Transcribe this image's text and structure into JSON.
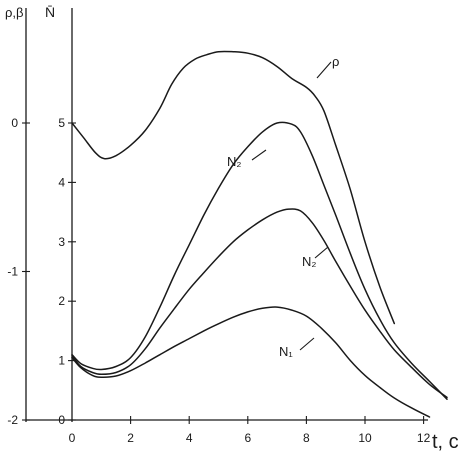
{
  "chart_data": {
    "type": "line",
    "xlabel": "t, c",
    "ylabel_left": "ρ,β",
    "ylabel_right": "N̄",
    "xlim": [
      -1.7,
      12.9
    ],
    "ylim_left": [
      -2.0,
      0.75
    ],
    "ylim_right": [
      0,
      6.5
    ],
    "x_ticks": [
      "0",
      "2",
      "4",
      "6",
      "8",
      "10",
      "12"
    ],
    "left_ticks": [
      "0",
      "-1",
      "-2"
    ],
    "right_ticks": [
      "0",
      "1",
      "2",
      "3",
      "4",
      "5"
    ],
    "grid": false,
    "legend": "none",
    "series": [
      {
        "name": "ρ",
        "axis": "left",
        "x": [
          0,
          0.4,
          0.8,
          1.1,
          1.5,
          2.0,
          2.5,
          3.0,
          3.4,
          3.8,
          4.2,
          4.6,
          5.0,
          5.5,
          6.0,
          6.5,
          7.0,
          7.5,
          8.0,
          8.3,
          8.6,
          9.0,
          9.5,
          10.0,
          10.5,
          11.0
        ],
        "y": [
          0.0,
          -0.1,
          -0.2,
          -0.24,
          -0.22,
          -0.15,
          -0.05,
          0.1,
          0.26,
          0.37,
          0.43,
          0.46,
          0.48,
          0.48,
          0.47,
          0.44,
          0.38,
          0.3,
          0.24,
          0.18,
          0.08,
          -0.15,
          -0.45,
          -0.8,
          -1.1,
          -1.35
        ]
      },
      {
        "name": "N₂",
        "axis": "right",
        "x": [
          0,
          0.3,
          0.7,
          1.0,
          1.5,
          2.0,
          2.5,
          3.0,
          3.5,
          4.0,
          4.5,
          5.0,
          5.5,
          6.0,
          6.5,
          7.0,
          7.5,
          7.8,
          8.2,
          8.6,
          9.0,
          9.5,
          10.0,
          10.5,
          11.0,
          11.6,
          12.2,
          12.8
        ],
        "y": [
          1.1,
          0.95,
          0.87,
          0.85,
          0.9,
          1.05,
          1.4,
          1.9,
          2.45,
          2.95,
          3.45,
          3.9,
          4.3,
          4.6,
          4.85,
          5.0,
          4.98,
          4.85,
          4.45,
          3.95,
          3.45,
          2.8,
          2.2,
          1.7,
          1.3,
          0.95,
          0.65,
          0.35
        ]
      },
      {
        "name": "N₂",
        "axis": "right",
        "x": [
          0,
          0.3,
          0.7,
          1.0,
          1.5,
          2.0,
          2.5,
          3.0,
          3.5,
          4.0,
          4.5,
          5.0,
          5.5,
          6.0,
          6.5,
          7.0,
          7.4,
          7.8,
          8.2,
          8.6,
          9.0,
          9.5,
          10.0,
          10.5,
          11.0,
          11.6,
          12.2,
          12.8
        ],
        "y": [
          1.08,
          0.9,
          0.8,
          0.77,
          0.8,
          0.93,
          1.2,
          1.55,
          1.88,
          2.2,
          2.48,
          2.75,
          3.0,
          3.2,
          3.37,
          3.5,
          3.55,
          3.52,
          3.32,
          3.02,
          2.67,
          2.25,
          1.85,
          1.5,
          1.18,
          0.88,
          0.6,
          0.38
        ]
      },
      {
        "name": "N₁",
        "axis": "right",
        "x": [
          0,
          0.3,
          0.7,
          1.0,
          1.5,
          2.0,
          2.5,
          3.0,
          3.5,
          4.0,
          4.5,
          5.0,
          5.5,
          6.0,
          6.5,
          7.0,
          7.5,
          8.0,
          8.5,
          9.0,
          9.5,
          10.0,
          10.5,
          11.0,
          11.6,
          12.2
        ],
        "y": [
          1.05,
          0.88,
          0.75,
          0.72,
          0.74,
          0.83,
          0.96,
          1.1,
          1.24,
          1.37,
          1.5,
          1.62,
          1.73,
          1.82,
          1.88,
          1.9,
          1.85,
          1.75,
          1.55,
          1.3,
          1.0,
          0.75,
          0.55,
          0.37,
          0.2,
          0.05
        ]
      }
    ],
    "annotations": [
      "ρ",
      "N₂",
      "N₂",
      "N₁"
    ]
  }
}
